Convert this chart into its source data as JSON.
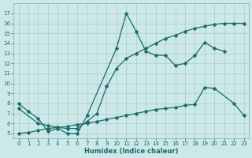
{
  "line1_x": [
    0,
    1,
    2,
    3,
    4,
    5,
    6,
    7,
    10,
    11,
    12,
    13,
    14,
    15,
    16,
    17,
    18,
    19,
    20,
    21
  ],
  "line1_y": [
    8.0,
    7.2,
    6.5,
    5.2,
    5.5,
    5.0,
    5.0,
    6.8,
    13.5,
    17.0,
    15.2,
    13.2,
    12.8,
    12.8,
    11.8,
    12.0,
    12.8,
    14.1,
    13.5,
    13.2
  ],
  "line2_x": [
    0,
    2,
    3,
    4,
    5,
    6,
    7,
    8,
    9,
    10,
    11,
    12,
    13,
    14,
    15,
    16,
    17,
    18,
    19,
    20,
    21,
    22,
    23
  ],
  "line2_y": [
    7.5,
    6.0,
    5.8,
    5.6,
    5.5,
    5.5,
    6.2,
    7.0,
    9.7,
    11.5,
    12.5,
    13.0,
    13.5,
    14.0,
    14.5,
    14.8,
    15.2,
    15.5,
    15.7,
    15.9,
    16.0,
    16.0,
    16.0
  ],
  "line3_x": [
    0,
    1,
    2,
    3,
    4,
    5,
    6,
    7,
    8,
    9,
    10,
    11,
    12,
    13,
    14,
    15,
    16,
    17,
    18,
    19,
    20,
    22,
    23
  ],
  "line3_y": [
    5.0,
    5.1,
    5.3,
    5.5,
    5.6,
    5.7,
    5.9,
    6.0,
    6.2,
    6.4,
    6.6,
    6.8,
    7.0,
    7.2,
    7.4,
    7.5,
    7.6,
    7.8,
    7.9,
    9.6,
    9.5,
    8.0,
    6.8
  ],
  "bg_color": "#cce8e8",
  "grid_color": "#aacccc",
  "line_color": "#1a6b6b",
  "xlabel": "Humidex (Indice chaleur)",
  "ylim": [
    4.5,
    18
  ],
  "xlim": [
    -0.5,
    23.5
  ],
  "yticks": [
    5,
    6,
    7,
    8,
    9,
    10,
    11,
    12,
    13,
    14,
    15,
    16,
    17
  ],
  "xticks": [
    0,
    1,
    2,
    3,
    4,
    5,
    6,
    7,
    8,
    9,
    10,
    11,
    12,
    13,
    14,
    15,
    16,
    17,
    18,
    19,
    20,
    21,
    22,
    23
  ]
}
